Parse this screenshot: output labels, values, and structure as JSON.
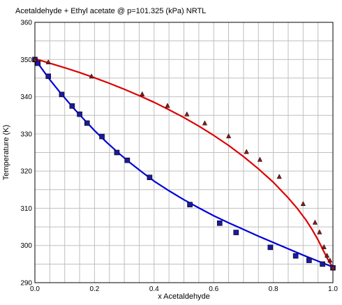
{
  "chart_data": {
    "type": "line",
    "title": "Acetaldehyde + Ethyl acetate @ p=101.325 (kPa) NRTL",
    "xlabel": "x Acetaldehyde",
    "ylabel": "Temperature (K)",
    "xlim": [
      0,
      1.0
    ],
    "ylim": [
      290,
      360
    ],
    "grid": true,
    "x_tick_labels": [
      "0.0",
      "0.2",
      "0.4",
      "0.6",
      "0.8",
      "1.0"
    ],
    "y_tick_labels": [
      "290",
      "300",
      "310",
      "320",
      "330",
      "340",
      "350",
      "360"
    ],
    "series": [
      {
        "role": "bubble-curve",
        "kind": "model-line",
        "color": "#0000dd",
        "x": [
          0,
          0.02,
          0.05,
          0.08,
          0.1,
          0.13,
          0.16,
          0.2,
          0.24,
          0.28,
          0.32,
          0.36,
          0.4,
          0.45,
          0.5,
          0.55,
          0.6,
          0.65,
          0.7,
          0.75,
          0.8,
          0.85,
          0.9,
          0.95,
          1.0
        ],
        "y": [
          350.2,
          347.9,
          344.6,
          341.6,
          339.7,
          336.9,
          334.3,
          330.9,
          327.8,
          324.9,
          322.2,
          319.7,
          317.3,
          314.7,
          312.3,
          310.1,
          308.0,
          306.1,
          304.3,
          302.5,
          300.8,
          299.1,
          297.4,
          295.8,
          294.2
        ]
      },
      {
        "role": "dew-curve",
        "kind": "model-line",
        "color": "#dd0000",
        "x": [
          0,
          0.05,
          0.1,
          0.15,
          0.2,
          0.25,
          0.3,
          0.35,
          0.4,
          0.45,
          0.5,
          0.55,
          0.6,
          0.65,
          0.7,
          0.75,
          0.8,
          0.85,
          0.88,
          0.91,
          0.93,
          0.95,
          0.97,
          0.98,
          0.99,
          1.0
        ],
        "y": [
          350.2,
          349.0,
          347.8,
          346.5,
          345.1,
          343.6,
          342.0,
          340.3,
          338.5,
          336.5,
          334.4,
          332.1,
          329.6,
          326.9,
          323.9,
          320.6,
          317.0,
          312.8,
          310.0,
          306.8,
          304.3,
          301.5,
          298.3,
          296.7,
          295.3,
          294.1
        ]
      },
      {
        "role": "bubble-points",
        "kind": "square-markers",
        "color": "#1a1aa0",
        "x": [
          0.0,
          0.01,
          0.045,
          0.09,
          0.125,
          0.15,
          0.175,
          0.225,
          0.275,
          0.31,
          0.385,
          0.52,
          0.62,
          0.675,
          0.79,
          0.875,
          0.92,
          0.965,
          1.0
        ],
        "y": [
          350.0,
          349.0,
          345.5,
          340.6,
          337.5,
          335.3,
          332.9,
          329.3,
          325.0,
          322.9,
          318.3,
          311.0,
          306.0,
          303.5,
          299.5,
          297.2,
          296.0,
          295.0,
          294.0
        ]
      },
      {
        "role": "dew-points",
        "kind": "triangle-markers",
        "color": "#8b1a1a",
        "x": [
          0.0,
          0.045,
          0.19,
          0.36,
          0.445,
          0.51,
          0.57,
          0.65,
          0.71,
          0.755,
          0.82,
          0.9,
          0.94,
          0.955,
          0.97,
          0.98,
          0.99,
          1.0
        ],
        "y": [
          350.0,
          349.3,
          345.5,
          340.7,
          337.6,
          335.3,
          332.9,
          329.4,
          325.2,
          323.1,
          318.5,
          311.2,
          306.2,
          303.6,
          299.6,
          297.3,
          296.0,
          294.0
        ]
      }
    ]
  }
}
